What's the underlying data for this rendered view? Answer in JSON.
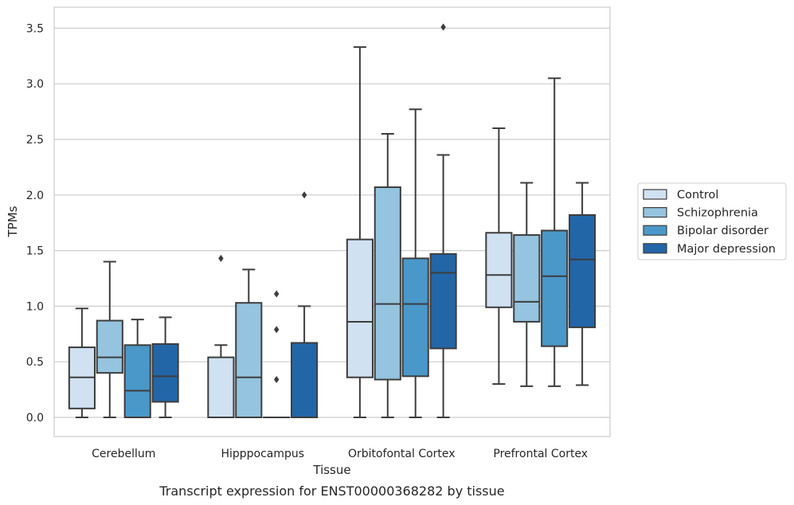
{
  "caption": "Transcript expression for ENST00000368282 by tissue",
  "chart_data": {
    "type": "box",
    "xlabel": "Tissue",
    "ylabel": "TPMs",
    "ylim": [
      -0.17,
      3.68
    ],
    "yticks": [
      0.0,
      0.5,
      1.0,
      1.5,
      2.0,
      2.5,
      3.0,
      3.5
    ],
    "ytick_labels": [
      "0.0",
      "0.5",
      "1.0",
      "1.5",
      "2.0",
      "2.5",
      "3.0",
      "3.5"
    ],
    "grid": "horizontal",
    "legend_position": "right",
    "categories": [
      "Cerebellum",
      "Hipppocampus",
      "Orbitofontal Cortex",
      "Prefrontal Cortex"
    ],
    "series": [
      {
        "name": "Control",
        "color": "#d0e1f2",
        "boxes": [
          {
            "whislo": 0.0,
            "q1": 0.08,
            "med": 0.36,
            "q3": 0.63,
            "whishi": 0.98,
            "fliers": []
          },
          {
            "whislo": 0.0,
            "q1": 0.0,
            "med": 0.0,
            "q3": 0.54,
            "whishi": 0.65,
            "fliers": [
              1.43
            ]
          },
          {
            "whislo": 0.0,
            "q1": 0.36,
            "med": 0.86,
            "q3": 1.6,
            "whishi": 3.33,
            "fliers": []
          },
          {
            "whislo": 0.3,
            "q1": 0.99,
            "med": 1.28,
            "q3": 1.66,
            "whishi": 2.6,
            "fliers": []
          }
        ]
      },
      {
        "name": "Schizophrenia",
        "color": "#94c4df",
        "boxes": [
          {
            "whislo": 0.0,
            "q1": 0.4,
            "med": 0.54,
            "q3": 0.87,
            "whishi": 1.4,
            "fliers": []
          },
          {
            "whislo": 0.0,
            "q1": 0.0,
            "med": 0.36,
            "q3": 1.03,
            "whishi": 1.33,
            "fliers": []
          },
          {
            "whislo": 0.0,
            "q1": 0.34,
            "med": 1.02,
            "q3": 2.07,
            "whishi": 2.55,
            "fliers": []
          },
          {
            "whislo": 0.28,
            "q1": 0.86,
            "med": 1.04,
            "q3": 1.64,
            "whishi": 2.11,
            "fliers": []
          }
        ]
      },
      {
        "name": "Bipolar disorder",
        "color": "#4a98c9",
        "boxes": [
          {
            "whislo": 0.0,
            "q1": 0.0,
            "med": 0.24,
            "q3": 0.65,
            "whishi": 0.88,
            "fliers": []
          },
          {
            "whislo": 0.0,
            "q1": 0.0,
            "med": 0.0,
            "q3": 0.0,
            "whishi": 0.0,
            "fliers": [
              1.11,
              0.79,
              0.34
            ]
          },
          {
            "whislo": 0.0,
            "q1": 0.37,
            "med": 1.02,
            "q3": 1.43,
            "whishi": 2.77,
            "fliers": []
          },
          {
            "whislo": 0.28,
            "q1": 0.64,
            "med": 1.27,
            "q3": 1.68,
            "whishi": 3.05,
            "fliers": []
          }
        ]
      },
      {
        "name": "Major depression",
        "color": "#2366a8",
        "boxes": [
          {
            "whislo": 0.0,
            "q1": 0.14,
            "med": 0.37,
            "q3": 0.66,
            "whishi": 0.9,
            "fliers": []
          },
          {
            "whislo": 0.0,
            "q1": 0.0,
            "med": 0.0,
            "q3": 0.67,
            "whishi": 1.0,
            "fliers": [
              2.0
            ]
          },
          {
            "whislo": 0.0,
            "q1": 0.62,
            "med": 1.3,
            "q3": 1.47,
            "whishi": 2.36,
            "fliers": [
              3.51
            ]
          },
          {
            "whislo": 0.29,
            "q1": 0.81,
            "med": 1.42,
            "q3": 1.82,
            "whishi": 2.11,
            "fliers": []
          }
        ]
      }
    ]
  }
}
